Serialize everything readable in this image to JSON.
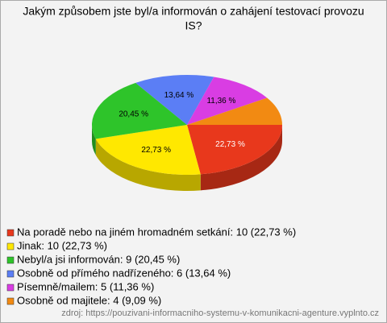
{
  "chart_data": {
    "type": "pie3d",
    "title": [
      "Jakým způsobem jste byl/a informován o zahájení testovací provozu",
      "IS?"
    ],
    "categories": [
      "Na poradě nebo na jiném hromadném setkání: 10 (22,73 %)",
      "Jinak: 10 (22,73 %)",
      "Nebyl/a jsi informován: 9 (20,45 %)",
      "Osobně od přímého nadřízeného: 6 (13,64 %)",
      "Písemně/mailem: 5 (11,36 %)",
      "Osobně od majitele: 4 (9,09 %)"
    ],
    "values": [
      22.73,
      22.73,
      20.45,
      13.64,
      11.36,
      9.09
    ],
    "value_labels": [
      "22,73 %",
      "22,73 %",
      "20,45 %",
      "13,64 %",
      "11,36 %",
      null
    ],
    "colors": [
      "#e8381c",
      "#ffe800",
      "#2ec42a",
      "#5b7ef5",
      "#d93de3",
      "#f28a12"
    ],
    "source": "zdroj: https://pouzivani-informacniho-systemu-v-komunikacni-agenture.vyplnto.cz"
  }
}
